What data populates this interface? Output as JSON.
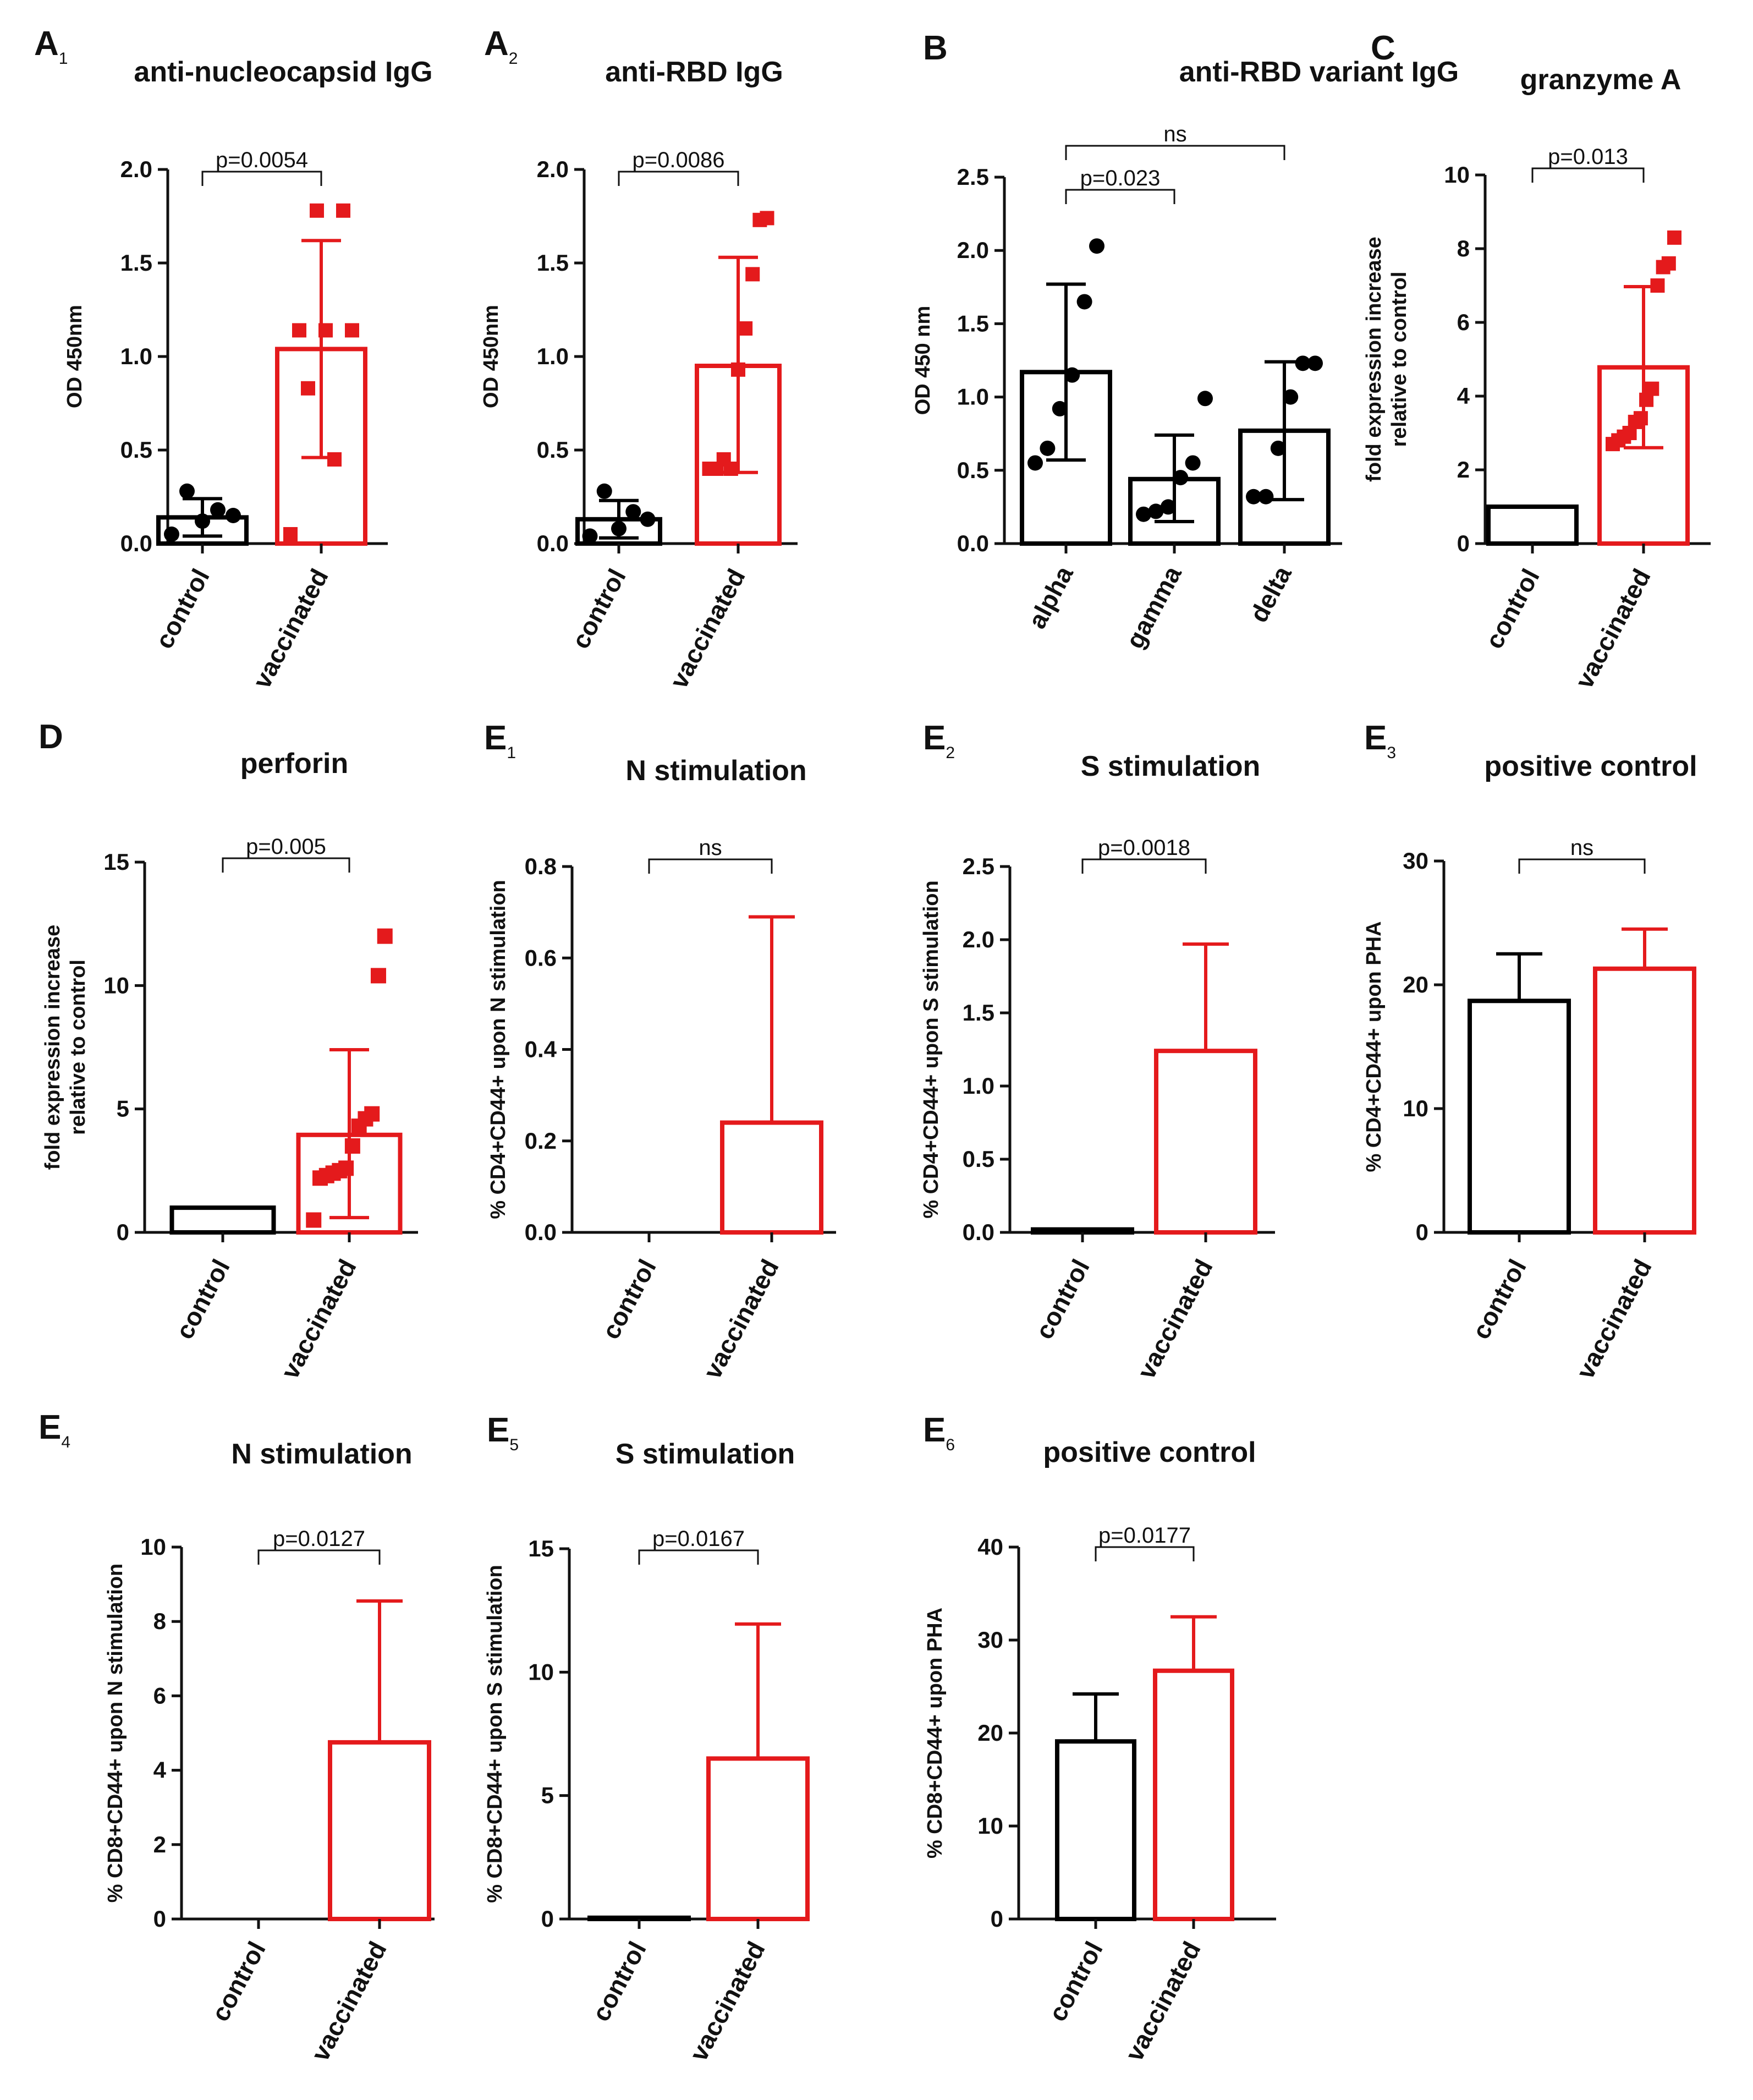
{
  "colors": {
    "control": "#000000",
    "vaccinated": "#e41a1c",
    "axis": "#111111"
  },
  "chart_data": [
    {
      "panel": "A",
      "panel_sub": "1",
      "type": "bar",
      "title": "anti-nucleocapsid IgG",
      "ylabel": "OD 450nm",
      "ylim": [
        0,
        2
      ],
      "yticks": [
        "0.0",
        "0.5",
        "1.0",
        "1.5",
        "2.0"
      ],
      "categories": [
        "control",
        "vaccinated"
      ],
      "colors": [
        "#000000",
        "#e41a1c"
      ],
      "markers": [
        "circle",
        "square"
      ],
      "values": [
        0.14,
        1.04
      ],
      "sd": [
        [
          0.04,
          0.24
        ],
        [
          0.46,
          1.62
        ]
      ],
      "points": [
        [
          0.05,
          0.12,
          0.15,
          0.28,
          0.18
        ],
        [
          0.05,
          0.45,
          0.83,
          1.14,
          1.14,
          1.14,
          1.78,
          1.78
        ]
      ],
      "comparisons": [
        {
          "from": 0,
          "to": 1,
          "label": "p=0.0054"
        }
      ]
    },
    {
      "panel": "A",
      "panel_sub": "2",
      "type": "bar",
      "title": "anti-RBD IgG",
      "ylabel": "OD 450nm",
      "ylim": [
        0,
        2
      ],
      "yticks": [
        "0.0",
        "0.5",
        "1.0",
        "1.5",
        "2.0"
      ],
      "categories": [
        "control",
        "vaccinated"
      ],
      "colors": [
        "#000000",
        "#e41a1c"
      ],
      "markers": [
        "circle",
        "square"
      ],
      "values": [
        0.13,
        0.95
      ],
      "sd": [
        [
          0.03,
          0.23
        ],
        [
          0.38,
          1.53
        ]
      ],
      "points": [
        [
          0.04,
          0.08,
          0.13,
          0.28,
          0.17
        ],
        [
          0.4,
          0.4,
          0.45,
          0.4,
          0.93,
          1.15,
          1.44,
          1.73,
          1.74
        ]
      ],
      "comparisons": [
        {
          "from": 0,
          "to": 1,
          "label": "p=0.0086"
        }
      ]
    },
    {
      "panel": "B",
      "panel_sub": "",
      "type": "bar",
      "title": "anti-RBD variant IgG",
      "ylabel": "OD 450 nm",
      "ylim": [
        0,
        2.5
      ],
      "yticks": [
        "0.0",
        "0.5",
        "1.0",
        "1.5",
        "2.0",
        "2.5"
      ],
      "categories": [
        "alpha",
        "gamma",
        "delta"
      ],
      "colors": [
        "#000000",
        "#000000",
        "#000000"
      ],
      "markers": [
        "circle",
        "circle",
        "circle"
      ],
      "values": [
        1.17,
        0.44,
        0.77
      ],
      "sd": [
        [
          0.57,
          1.77
        ],
        [
          0.15,
          0.74
        ],
        [
          0.3,
          1.24
        ]
      ],
      "points": [
        [
          0.55,
          0.65,
          0.92,
          1.15,
          1.65,
          2.03
        ],
        [
          0.2,
          0.22,
          0.25,
          0.45,
          0.55,
          0.99
        ],
        [
          0.32,
          0.32,
          0.65,
          1.0,
          1.23,
          1.23
        ]
      ],
      "comparisons": [
        {
          "from": 0,
          "to": 1,
          "label": "p=0.023"
        },
        {
          "from": 0,
          "to": 2,
          "label": "ns"
        }
      ]
    },
    {
      "panel": "C",
      "panel_sub": "",
      "type": "bar",
      "title": "granzyme A",
      "ylabel": "fold expression increase\nrelative to control",
      "ylim": [
        0,
        10
      ],
      "yticks": [
        "0",
        "2",
        "4",
        "6",
        "8",
        "10"
      ],
      "categories": [
        "control",
        "vaccinated"
      ],
      "colors": [
        "#000000",
        "#e41a1c"
      ],
      "markers": [
        "circle",
        "square"
      ],
      "values": [
        1.0,
        4.78
      ],
      "sd": [
        null,
        [
          2.6,
          6.97
        ]
      ],
      "points": [
        [],
        [
          2.7,
          2.8,
          2.9,
          3.0,
          3.3,
          3.4,
          3.9,
          4.2,
          7.0,
          7.5,
          7.6,
          8.3
        ]
      ],
      "comparisons": [
        {
          "from": 0,
          "to": 1,
          "label": "p=0.013"
        }
      ]
    },
    {
      "panel": "D",
      "panel_sub": "",
      "type": "bar",
      "title": "perforin",
      "ylabel": "fold expression increase\nrelative to control",
      "ylim": [
        0,
        15
      ],
      "yticks": [
        "0",
        "5",
        "10",
        "15"
      ],
      "categories": [
        "control",
        "vaccinated"
      ],
      "colors": [
        "#000000",
        "#e41a1c"
      ],
      "markers": [
        "circle",
        "square"
      ],
      "values": [
        1.0,
        3.95
      ],
      "sd": [
        null,
        [
          0.6,
          7.4
        ]
      ],
      "points": [
        [],
        [
          0.5,
          2.2,
          2.3,
          2.4,
          2.5,
          2.6,
          3.5,
          4.3,
          4.6,
          4.8,
          10.4,
          12.0
        ]
      ],
      "comparisons": [
        {
          "from": 0,
          "to": 1,
          "label": "p=0.005"
        }
      ]
    },
    {
      "panel": "E",
      "panel_sub": "1",
      "type": "bar",
      "title": "N stimulation",
      "ylabel": "% CD4+CD44+ upon N stimulation",
      "ylim": [
        0,
        0.8
      ],
      "yticks": [
        "0.0",
        "0.2",
        "0.4",
        "0.6",
        "0.8"
      ],
      "categories": [
        "control",
        "vaccinated"
      ],
      "colors": [
        "#000000",
        "#e41a1c"
      ],
      "values": [
        0.0,
        0.24
      ],
      "err_upper": [
        null,
        0.69
      ],
      "comparisons": [
        {
          "from": 0,
          "to": 1,
          "label": "ns"
        }
      ]
    },
    {
      "panel": "E",
      "panel_sub": "2",
      "type": "bar",
      "title": "S stimulation",
      "ylabel": "% CD4+CD44+ upon S stimulation",
      "ylim": [
        0,
        2.5
      ],
      "yticks": [
        "0.0",
        "0.5",
        "1.0",
        "1.5",
        "2.0",
        "2.5"
      ],
      "categories": [
        "control",
        "vaccinated"
      ],
      "colors": [
        "#000000",
        "#e41a1c"
      ],
      "values": [
        0.02,
        1.24
      ],
      "err_upper": [
        null,
        1.97
      ],
      "comparisons": [
        {
          "from": 0,
          "to": 1,
          "label": "p=0.0018"
        }
      ]
    },
    {
      "panel": "E",
      "panel_sub": "3",
      "type": "bar",
      "title": "positive control",
      "ylabel": "% CD4+CD44+ upon PHA",
      "ylim": [
        0,
        30
      ],
      "yticks": [
        "0",
        "10",
        "20",
        "30"
      ],
      "categories": [
        "control",
        "vaccinated"
      ],
      "colors": [
        "#000000",
        "#e41a1c"
      ],
      "values": [
        18.7,
        21.3
      ],
      "err_upper": [
        22.5,
        24.5
      ],
      "comparisons": [
        {
          "from": 0,
          "to": 1,
          "label": "ns"
        }
      ]
    },
    {
      "panel": "E",
      "panel_sub": "4",
      "type": "bar",
      "title": "N stimulation",
      "ylabel": "% CD8+CD44+ upon N stimulation",
      "ylim": [
        0,
        10
      ],
      "yticks": [
        "0",
        "2",
        "4",
        "6",
        "8",
        "10"
      ],
      "categories": [
        "control",
        "vaccinated"
      ],
      "colors": [
        "#000000",
        "#e41a1c"
      ],
      "values": [
        0.0,
        4.75
      ],
      "err_upper": [
        null,
        8.55
      ],
      "comparisons": [
        {
          "from": 0,
          "to": 1,
          "label": "p=0.0127"
        }
      ]
    },
    {
      "panel": "E",
      "panel_sub": "5",
      "type": "bar",
      "title": "S stimulation",
      "ylabel": "% CD8+CD44+ upon S stimulation",
      "ylim": [
        0,
        15
      ],
      "yticks": [
        "0",
        "5",
        "10",
        "15"
      ],
      "categories": [
        "control",
        "vaccinated"
      ],
      "colors": [
        "#000000",
        "#e41a1c"
      ],
      "values": [
        0.05,
        6.5
      ],
      "err_upper": [
        null,
        11.95
      ],
      "comparisons": [
        {
          "from": 0,
          "to": 1,
          "label": "p=0.0167"
        }
      ]
    },
    {
      "panel": "E",
      "panel_sub": "6",
      "type": "bar",
      "title": "positive control",
      "ylabel": "% CD8+CD44+ upon PHA",
      "ylim": [
        0,
        40
      ],
      "yticks": [
        "0",
        "10",
        "20",
        "30",
        "40"
      ],
      "categories": [
        "control",
        "vaccinated"
      ],
      "colors": [
        "#000000",
        "#e41a1c"
      ],
      "values": [
        19.1,
        26.7
      ],
      "err_upper": [
        24.2,
        32.5
      ],
      "comparisons": [
        {
          "from": 0,
          "to": 1,
          "label": "p=0.0177"
        }
      ]
    }
  ]
}
